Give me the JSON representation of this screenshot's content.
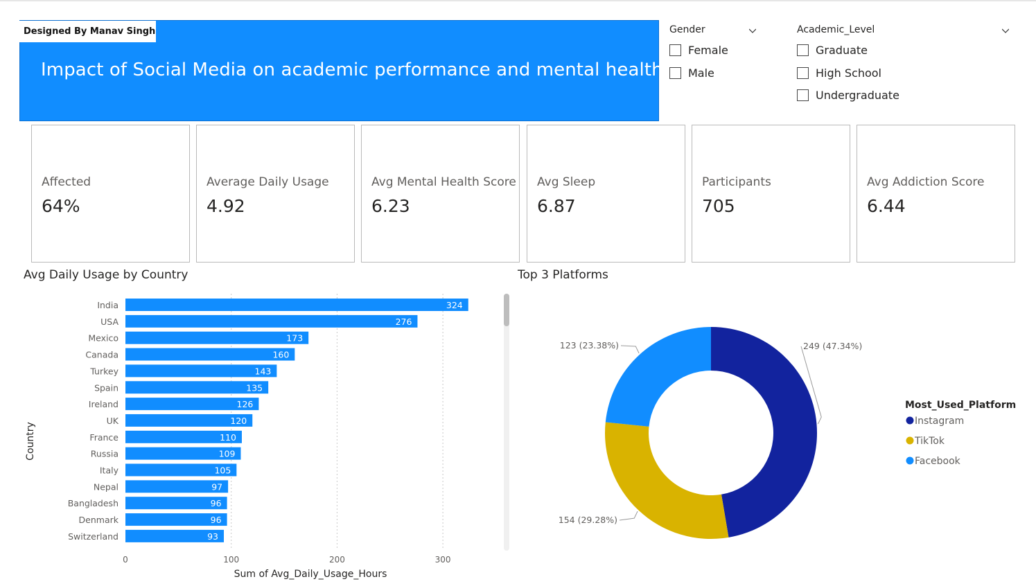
{
  "designer_credit": "Designed By Manav Singh",
  "banner_title": "Impact of Social Media on academic performance and mental health",
  "slicers": {
    "gender": {
      "title": "Gender",
      "options": [
        "Female",
        "Male"
      ]
    },
    "academic_level": {
      "title": "Academic_Level",
      "options": [
        "Graduate",
        "High School",
        "Undergraduate"
      ]
    }
  },
  "kpis": [
    {
      "label": "Affected",
      "value": "64%"
    },
    {
      "label": "Average Daily Usage",
      "value": "4.92"
    },
    {
      "label": "Avg Mental Health Score",
      "value": "6.23"
    },
    {
      "label": "Avg Sleep",
      "value": "6.87"
    },
    {
      "label": "Participants",
      "value": "705"
    },
    {
      "label": "Avg Addiction Score",
      "value": "6.44"
    }
  ],
  "chart_data": [
    {
      "type": "bar",
      "orientation": "horizontal",
      "title": "Avg Daily Usage by Country",
      "xlabel": "Sum of Avg_Daily_Usage_Hours",
      "ylabel": "Country",
      "categories": [
        "India",
        "USA",
        "Mexico",
        "Canada",
        "Turkey",
        "Spain",
        "Ireland",
        "UK",
        "France",
        "Russia",
        "Italy",
        "Nepal",
        "Bangladesh",
        "Denmark",
        "Switzerland"
      ],
      "values": [
        324,
        276,
        173,
        160,
        143,
        135,
        126,
        120,
        110,
        109,
        105,
        97,
        96,
        96,
        93
      ],
      "xticks": [
        0,
        100,
        200,
        300
      ],
      "xlim": [
        0,
        350
      ],
      "grid": true,
      "data_labels": true,
      "color": "#118dff"
    },
    {
      "type": "pie",
      "donut": true,
      "title": "Top 3 Platforms",
      "legend_title": "Most_Used_Platform",
      "legend_position": "right",
      "slices": [
        {
          "name": "Instagram",
          "value": 249,
          "label": "249 (47.34%)",
          "color": "#12239e"
        },
        {
          "name": "TikTok",
          "value": 154,
          "label": "154 (29.28%)",
          "color": "#d9b300"
        },
        {
          "name": "Facebook",
          "value": 123,
          "label": "123 (23.38%)",
          "color": "#118dff"
        }
      ]
    }
  ]
}
